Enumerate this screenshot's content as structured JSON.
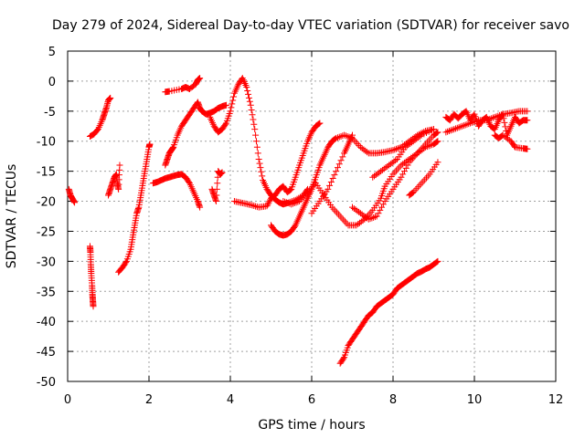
{
  "chart_data": {
    "type": "scatter",
    "title": "Day 279 of 2024, Sidereal Day-to-day VTEC variation (SDTVAR) for receiver savo",
    "xlabel": "GPS time / hours",
    "ylabel": "SDTVAR / TECUs",
    "xlim": [
      0,
      12
    ],
    "ylim": [
      -50,
      5
    ],
    "xticks": [
      0,
      2,
      4,
      6,
      8,
      10,
      12
    ],
    "yticks": [
      5,
      0,
      -5,
      -10,
      -15,
      -20,
      -25,
      -30,
      -35,
      -40,
      -45,
      -50
    ],
    "grid": true,
    "marker": "+",
    "color": "#ff0000",
    "series": [
      {
        "points": [
          [
            0.03,
            -18
          ],
          [
            0.07,
            -19
          ],
          [
            0.12,
            -19.6
          ],
          [
            0.17,
            -20.2
          ]
        ]
      },
      {
        "points": [
          [
            0.55,
            -27.5
          ],
          [
            0.56,
            -28.5
          ],
          [
            0.57,
            -30.5
          ],
          [
            0.58,
            -32
          ],
          [
            0.6,
            -34
          ],
          [
            0.61,
            -35.5
          ],
          [
            0.62,
            -36.5
          ],
          [
            0.63,
            -37.5
          ]
        ]
      },
      {
        "points": [
          [
            0.55,
            -9.2
          ],
          [
            0.65,
            -8.8
          ],
          [
            0.75,
            -8
          ],
          [
            0.85,
            -6.5
          ],
          [
            0.9,
            -5.5
          ],
          [
            0.95,
            -4.5
          ],
          [
            1.0,
            -3.2
          ],
          [
            1.05,
            -2.8
          ]
        ]
      },
      {
        "points": [
          [
            1.0,
            -19
          ],
          [
            1.05,
            -18
          ],
          [
            1.1,
            -17
          ],
          [
            1.15,
            -16
          ],
          [
            1.2,
            -15.5
          ],
          [
            1.22,
            -17
          ],
          [
            1.25,
            -18
          ],
          [
            1.28,
            -14
          ]
        ]
      },
      {
        "points": [
          [
            1.25,
            -31.8
          ],
          [
            1.35,
            -31
          ],
          [
            1.45,
            -30
          ],
          [
            1.55,
            -28
          ],
          [
            1.6,
            -26
          ],
          [
            1.65,
            -24
          ],
          [
            1.7,
            -22
          ],
          [
            1.75,
            -21
          ],
          [
            1.8,
            -19
          ],
          [
            1.85,
            -17
          ],
          [
            1.9,
            -15
          ],
          [
            1.95,
            -13
          ],
          [
            2.0,
            -11
          ],
          [
            2.02,
            -10.5
          ]
        ]
      },
      {
        "points": [
          [
            2.1,
            -17
          ],
          [
            2.2,
            -16.8
          ],
          [
            2.3,
            -16.5
          ],
          [
            2.4,
            -16.2
          ],
          [
            2.5,
            -16
          ],
          [
            2.6,
            -15.8
          ],
          [
            2.7,
            -15.6
          ],
          [
            2.8,
            -15.5
          ],
          [
            2.9,
            -16
          ],
          [
            3.0,
            -17
          ],
          [
            3.1,
            -18.5
          ],
          [
            3.2,
            -20
          ],
          [
            3.25,
            -21
          ]
        ]
      },
      {
        "points": [
          [
            2.4,
            -14
          ],
          [
            2.45,
            -13
          ],
          [
            2.5,
            -12
          ],
          [
            2.55,
            -11.5
          ],
          [
            2.6,
            -11
          ],
          [
            2.7,
            -9
          ],
          [
            2.8,
            -7.5
          ],
          [
            2.9,
            -6.5
          ],
          [
            3.0,
            -5.5
          ],
          [
            3.1,
            -4.5
          ],
          [
            3.2,
            -3.5
          ],
          [
            3.25,
            -4.5
          ],
          [
            3.3,
            -5
          ],
          [
            3.4,
            -5.5
          ],
          [
            3.5,
            -5.3
          ],
          [
            3.6,
            -5
          ],
          [
            3.7,
            -4.5
          ],
          [
            3.8,
            -4.2
          ],
          [
            3.9,
            -4
          ]
        ]
      },
      {
        "points": [
          [
            2.4,
            -1.8
          ],
          [
            2.5,
            -1.7
          ],
          [
            2.8,
            -1.3
          ],
          [
            2.9,
            -1.0
          ],
          [
            3.0,
            -1.3
          ],
          [
            3.15,
            -0.5
          ],
          [
            3.2,
            0.2
          ],
          [
            3.25,
            0.5
          ]
        ]
      },
      {
        "points": [
          [
            3.5,
            -6
          ],
          [
            3.6,
            -7.5
          ],
          [
            3.7,
            -8.5
          ],
          [
            3.8,
            -8
          ],
          [
            3.9,
            -7
          ],
          [
            4.0,
            -5
          ],
          [
            4.1,
            -2
          ],
          [
            4.2,
            -0.5
          ],
          [
            4.3,
            0.5
          ],
          [
            4.4,
            -1
          ],
          [
            4.5,
            -4
          ],
          [
            4.6,
            -8
          ],
          [
            4.7,
            -13
          ],
          [
            4.8,
            -16.5
          ],
          [
            4.9,
            -18
          ],
          [
            5.0,
            -19
          ],
          [
            5.1,
            -19.7
          ],
          [
            5.2,
            -20.2
          ],
          [
            5.3,
            -20.5
          ],
          [
            5.4,
            -20.3
          ],
          [
            5.6,
            -19.8
          ],
          [
            5.8,
            -19
          ],
          [
            5.9,
            -18
          ]
        ]
      },
      {
        "points": [
          [
            3.55,
            -18
          ],
          [
            3.6,
            -19
          ],
          [
            3.65,
            -20
          ],
          [
            3.7,
            -15
          ],
          [
            3.75,
            -15.5
          ],
          [
            3.8,
            -15.2
          ]
        ]
      },
      {
        "points": [
          [
            4.1,
            -20
          ],
          [
            4.3,
            -20.3
          ],
          [
            4.5,
            -20.6
          ],
          [
            4.7,
            -21
          ],
          [
            4.9,
            -20.8
          ],
          [
            5.0,
            -19.5
          ],
          [
            5.1,
            -19
          ],
          [
            5.2,
            -18
          ],
          [
            5.3,
            -17.5
          ],
          [
            5.4,
            -18.5
          ],
          [
            5.5,
            -18
          ],
          [
            5.6,
            -16
          ],
          [
            5.7,
            -14
          ],
          [
            5.8,
            -12
          ],
          [
            5.9,
            -10
          ],
          [
            6.0,
            -8.5
          ],
          [
            6.1,
            -7.5
          ],
          [
            6.2,
            -7
          ]
        ]
      },
      {
        "points": [
          [
            5.0,
            -24
          ],
          [
            5.1,
            -25
          ],
          [
            5.2,
            -25.5
          ],
          [
            5.3,
            -25.7
          ],
          [
            5.4,
            -25.5
          ],
          [
            5.5,
            -25
          ],
          [
            5.6,
            -24
          ],
          [
            5.7,
            -22.5
          ],
          [
            5.8,
            -21
          ],
          [
            5.9,
            -19.5
          ],
          [
            6.0,
            -18
          ],
          [
            6.1,
            -16
          ],
          [
            6.2,
            -14
          ],
          [
            6.3,
            -12.5
          ],
          [
            6.4,
            -11
          ],
          [
            6.5,
            -10
          ],
          [
            6.6,
            -9.5
          ],
          [
            6.8,
            -9
          ],
          [
            7.0,
            -9.5
          ],
          [
            7.2,
            -11
          ],
          [
            7.4,
            -12
          ],
          [
            7.6,
            -12
          ],
          [
            7.8,
            -11.8
          ],
          [
            8.0,
            -11.5
          ],
          [
            8.2,
            -11
          ],
          [
            8.4,
            -10
          ],
          [
            8.6,
            -9
          ],
          [
            8.8,
            -8.3
          ],
          [
            9.0,
            -8
          ]
        ]
      },
      {
        "points": [
          [
            5.3,
            -20
          ],
          [
            5.5,
            -20.5
          ],
          [
            5.7,
            -20
          ],
          [
            5.9,
            -18.5
          ],
          [
            6.1,
            -17
          ],
          [
            6.3,
            -19
          ],
          [
            6.5,
            -21
          ],
          [
            6.7,
            -22.5
          ],
          [
            6.9,
            -24
          ],
          [
            7.1,
            -24
          ],
          [
            7.3,
            -23
          ],
          [
            7.5,
            -21.5
          ],
          [
            7.7,
            -19.5
          ],
          [
            7.8,
            -17.5
          ],
          [
            8.0,
            -15.5
          ],
          [
            8.2,
            -14
          ],
          [
            8.4,
            -13
          ],
          [
            8.6,
            -12
          ],
          [
            8.8,
            -11
          ],
          [
            9.0,
            -10.5
          ],
          [
            9.1,
            -10
          ]
        ]
      },
      {
        "points": [
          [
            6.0,
            -22
          ],
          [
            6.2,
            -20
          ],
          [
            6.4,
            -18
          ],
          [
            6.6,
            -15
          ],
          [
            6.8,
            -12
          ],
          [
            6.9,
            -10.5
          ],
          [
            7.0,
            -9
          ]
        ]
      },
      {
        "points": [
          [
            7.0,
            -21
          ],
          [
            7.2,
            -22
          ],
          [
            7.4,
            -23
          ],
          [
            7.6,
            -22.5
          ],
          [
            7.8,
            -20
          ],
          [
            8.0,
            -18
          ],
          [
            8.2,
            -16
          ],
          [
            8.4,
            -13.5
          ],
          [
            8.6,
            -12
          ],
          [
            8.8,
            -10.5
          ],
          [
            9.0,
            -9
          ],
          [
            9.1,
            -8.5
          ]
        ]
      },
      {
        "points": [
          [
            6.7,
            -47
          ],
          [
            6.8,
            -46
          ],
          [
            6.9,
            -44
          ],
          [
            7.0,
            -43
          ],
          [
            7.1,
            -42
          ],
          [
            7.2,
            -41
          ],
          [
            7.3,
            -40
          ],
          [
            7.4,
            -39
          ],
          [
            7.5,
            -38.5
          ],
          [
            7.6,
            -37.5
          ],
          [
            7.7,
            -37
          ],
          [
            7.8,
            -36.5
          ],
          [
            7.9,
            -36
          ],
          [
            8.0,
            -35.5
          ],
          [
            8.1,
            -34.5
          ],
          [
            8.2,
            -34
          ],
          [
            8.3,
            -33.5
          ],
          [
            8.4,
            -33
          ],
          [
            8.5,
            -32.5
          ],
          [
            8.6,
            -32
          ],
          [
            8.7,
            -31.7
          ],
          [
            8.8,
            -31.3
          ],
          [
            8.9,
            -31
          ],
          [
            9.0,
            -30.5
          ],
          [
            9.1,
            -30
          ]
        ]
      },
      {
        "points": [
          [
            7.5,
            -16
          ],
          [
            7.7,
            -15
          ],
          [
            7.9,
            -14
          ],
          [
            8.1,
            -13
          ],
          [
            8.3,
            -11
          ],
          [
            8.5,
            -10
          ],
          [
            8.7,
            -9
          ],
          [
            9.0,
            -8
          ]
        ]
      },
      {
        "points": [
          [
            8.4,
            -19
          ],
          [
            8.5,
            -18.5
          ],
          [
            8.7,
            -17
          ],
          [
            8.9,
            -15.5
          ],
          [
            9.1,
            -13.5
          ]
        ]
      },
      {
        "points": [
          [
            9.3,
            -6
          ],
          [
            9.4,
            -6.5
          ],
          [
            9.5,
            -5.5
          ],
          [
            9.6,
            -6.2
          ],
          [
            9.7,
            -5.5
          ],
          [
            9.8,
            -5.0
          ],
          [
            9.9,
            -6.5
          ],
          [
            10.0,
            -5.5
          ],
          [
            10.1,
            -7.5
          ],
          [
            10.2,
            -6.5
          ],
          [
            10.3,
            -6.0
          ],
          [
            10.4,
            -7.5
          ],
          [
            10.5,
            -8.0
          ],
          [
            10.6,
            -6.5
          ],
          [
            10.7,
            -5.5
          ],
          [
            10.8,
            -9.0
          ],
          [
            10.9,
            -7.5
          ],
          [
            11.0,
            -6.0
          ],
          [
            11.1,
            -7.0
          ],
          [
            11.2,
            -6.5
          ],
          [
            11.3,
            -6.5
          ]
        ]
      },
      {
        "points": [
          [
            9.3,
            -8.5
          ],
          [
            9.5,
            -8.0
          ],
          [
            9.7,
            -7.5
          ],
          [
            9.9,
            -7.0
          ],
          [
            10.1,
            -6.5
          ],
          [
            10.3,
            -6.5
          ],
          [
            10.5,
            -6.0
          ],
          [
            10.7,
            -5.5
          ],
          [
            10.9,
            -5.3
          ],
          [
            11.1,
            -5.0
          ],
          [
            11.3,
            -5.0
          ]
        ]
      },
      {
        "points": [
          [
            10.5,
            -9
          ],
          [
            10.6,
            -9.5
          ],
          [
            10.7,
            -9
          ],
          [
            10.9,
            -10
          ],
          [
            11.0,
            -11
          ],
          [
            11.2,
            -11.2
          ],
          [
            11.3,
            -11.3
          ]
        ]
      }
    ]
  }
}
